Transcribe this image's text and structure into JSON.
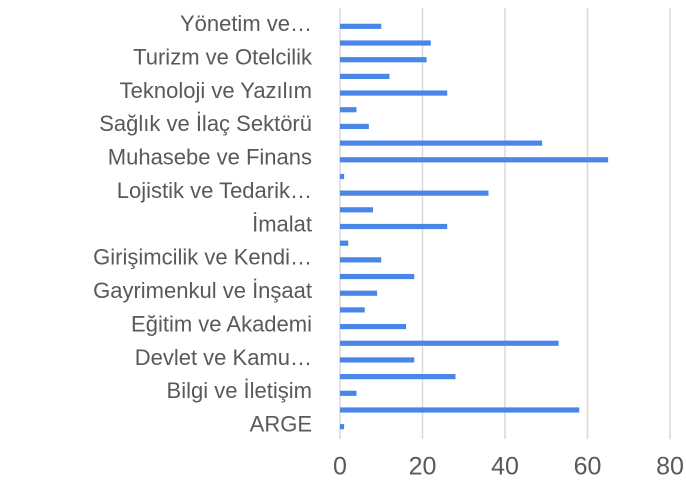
{
  "chart_data": {
    "type": "hbar",
    "categories": [
      "Yönetim ve…",
      null,
      "Turizm ve Otelcilik",
      null,
      "Teknoloji ve Yazılım",
      null,
      "Sağlık ve İlaç Sektörü",
      null,
      "Muhasebe ve Finans",
      null,
      "Lojistik ve Tedarik…",
      null,
      "İmalat",
      null,
      "Girişimcilik ve Kendi…",
      null,
      "Gayrimenkul ve İnşaat",
      null,
      "Eğitim ve Akademi",
      null,
      "Devlet ve Kamu…",
      null,
      "Bilgi ve İletişim",
      null,
      "ARGE"
    ],
    "values": [
      10,
      22,
      21,
      12,
      26,
      4,
      7,
      49,
      65,
      1,
      36,
      8,
      26,
      2,
      10,
      18,
      9,
      6,
      16,
      53,
      18,
      28,
      4,
      58,
      1
    ],
    "color": "#4a86e8",
    "xlim": [
      0,
      80
    ],
    "xticks": [
      0,
      20,
      40,
      60,
      80
    ],
    "grid": true
  }
}
